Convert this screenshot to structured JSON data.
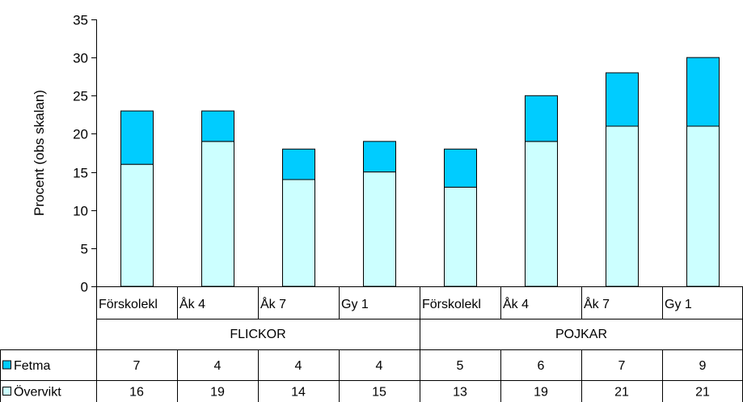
{
  "chart_data": {
    "type": "bar",
    "stacked": true,
    "ylabel": "Procent (obs skalan)",
    "ylim": [
      0,
      35
    ],
    "yticks": [
      0,
      5,
      10,
      15,
      20,
      25,
      30,
      35
    ],
    "grid": false,
    "categories": [
      "Förskolekl",
      "Åk 4",
      "Åk 7",
      "Gy 1",
      "Förskolekl",
      "Åk 4",
      "Åk 7",
      "Gy 1"
    ],
    "groups": [
      {
        "label": "FLICKOR",
        "count": 4
      },
      {
        "label": "POJKAR",
        "count": 4
      }
    ],
    "series": [
      {
        "name": "Övervikt",
        "color": "#ccffff",
        "values": [
          16,
          19,
          14,
          15,
          13,
          19,
          21,
          21
        ]
      },
      {
        "name": "Fetma",
        "color": "#00ccff",
        "values": [
          7,
          4,
          4,
          4,
          5,
          6,
          7,
          9
        ]
      }
    ],
    "table_rows": [
      "Fetma",
      "Övervikt"
    ]
  }
}
